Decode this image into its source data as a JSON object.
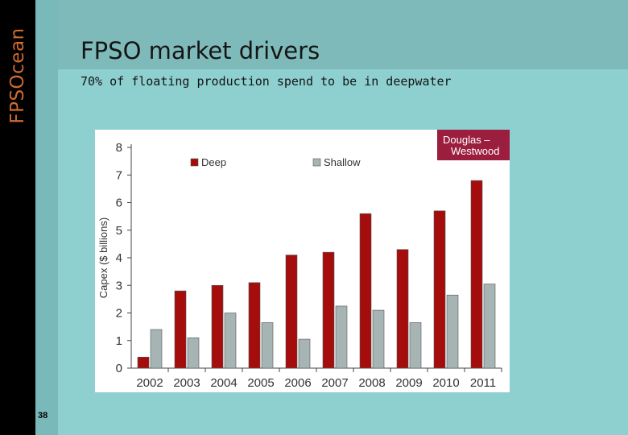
{
  "slide": {
    "brand": "FPSOcean",
    "title": "FPSO market drivers",
    "subtitle": "70% of floating production spend to be in deepwater",
    "page_number": "38"
  },
  "source_badge": {
    "line1": "Douglas –",
    "line2": "Westwood"
  },
  "colors": {
    "deep": "#a50d0d",
    "shallow": "#a7b4b4",
    "logo": "#d06a2e",
    "badge": "#9c1e3e"
  },
  "chart_data": {
    "type": "bar",
    "title": "",
    "xlabel": "",
    "ylabel": "Capex ($ billions)",
    "ylim": [
      0,
      8
    ],
    "yticks": [
      0,
      1,
      2,
      3,
      4,
      5,
      6,
      7,
      8
    ],
    "categories": [
      "2002",
      "2003",
      "2004",
      "2005",
      "2006",
      "2007",
      "2008",
      "2009",
      "2010",
      "2011"
    ],
    "series": [
      {
        "name": "Deep",
        "values": [
          0.4,
          2.8,
          3.0,
          3.1,
          4.1,
          4.2,
          5.6,
          4.3,
          5.7,
          6.8
        ]
      },
      {
        "name": "Shallow",
        "values": [
          1.4,
          1.1,
          2.0,
          1.65,
          1.05,
          2.25,
          2.1,
          1.65,
          2.65,
          3.05
        ]
      }
    ],
    "legend": "top"
  }
}
